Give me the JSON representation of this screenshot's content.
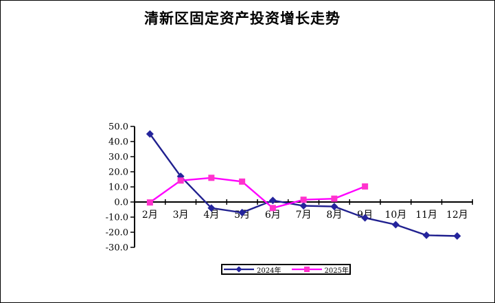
{
  "chart_data": {
    "type": "line",
    "title": "清新区固定资产投资增长走势",
    "categories": [
      "2月",
      "3月",
      "4月",
      "5月",
      "6月",
      "7月",
      "8月",
      "9月",
      "10月",
      "11月",
      "12月"
    ],
    "series": [
      {
        "name": "2024年",
        "color": "#20208F",
        "marker": "diamond",
        "marker_fill": "#24249C",
        "values": [
          45.0,
          17.0,
          -4.0,
          -7.0,
          1.0,
          -2.5,
          -3.0,
          -10.5,
          -15.0,
          -22.0,
          -22.5
        ]
      },
      {
        "name": "2025年",
        "color": "#FF00FF",
        "marker": "square",
        "marker_fill": "#FF33CC",
        "values": [
          -0.3,
          14.2,
          16.0,
          13.5,
          -4.0,
          1.5,
          2.2,
          10.3
        ]
      }
    ],
    "xlabel": "",
    "ylabel": "",
    "ylim": [
      -30,
      50
    ],
    "ytick_step": 10,
    "ytick_decimals": 1,
    "grid": false,
    "legend_position": "bottom",
    "axis_color": "#000000",
    "background_color": "#FFFFFF"
  }
}
